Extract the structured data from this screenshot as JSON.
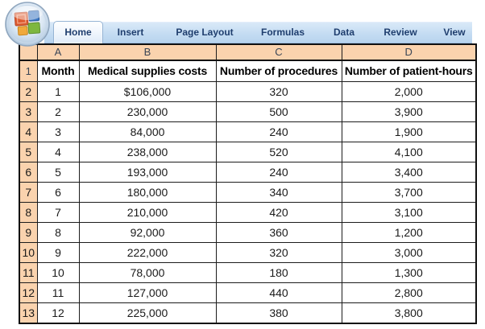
{
  "ribbon": {
    "office_button": "office-logo",
    "tabs": [
      {
        "label": "Home",
        "active": true
      },
      {
        "label": "Insert",
        "active": false
      },
      {
        "label": "Page Layout",
        "active": false
      },
      {
        "label": "Formulas",
        "active": false
      },
      {
        "label": "Data",
        "active": false
      },
      {
        "label": "Review",
        "active": false
      },
      {
        "label": "View",
        "active": false
      }
    ],
    "bar_color": "#c3dbf2",
    "tab_text_color": "#1f3e6e"
  },
  "spreadsheet": {
    "header_fill": "#fad3ae",
    "grid_color": "#1c1c1c",
    "column_letters": [
      "A",
      "B",
      "C",
      "D"
    ],
    "header_row": {
      "number": "1",
      "cells": [
        "Month",
        "Medical supplies costs",
        "Number of procedures",
        "Number of patient-hours"
      ]
    },
    "rows": [
      {
        "number": "2",
        "month": "1",
        "cost": "$106,000",
        "procedures": "320",
        "hours": "2,000"
      },
      {
        "number": "3",
        "month": "2",
        "cost": "230,000",
        "procedures": "500",
        "hours": "3,900"
      },
      {
        "number": "4",
        "month": "3",
        "cost": "84,000",
        "procedures": "240",
        "hours": "1,900"
      },
      {
        "number": "5",
        "month": "4",
        "cost": "238,000",
        "procedures": "520",
        "hours": "4,100"
      },
      {
        "number": "6",
        "month": "5",
        "cost": "193,000",
        "procedures": "240",
        "hours": "3,400"
      },
      {
        "number": "7",
        "month": "6",
        "cost": "180,000",
        "procedures": "340",
        "hours": "3,700"
      },
      {
        "number": "8",
        "month": "7",
        "cost": "210,000",
        "procedures": "420",
        "hours": "3,100"
      },
      {
        "number": "9",
        "month": "8",
        "cost": "92,000",
        "procedures": "360",
        "hours": "1,200"
      },
      {
        "number": "10",
        "month": "9",
        "cost": "222,000",
        "procedures": "320",
        "hours": "3,000"
      },
      {
        "number": "11",
        "month": "10",
        "cost": "78,000",
        "procedures": "180",
        "hours": "1,300"
      },
      {
        "number": "12",
        "month": "11",
        "cost": "127,000",
        "procedures": "440",
        "hours": "2,800"
      },
      {
        "number": "13",
        "month": "12",
        "cost": "225,000",
        "procedures": "380",
        "hours": "3,800"
      }
    ]
  }
}
